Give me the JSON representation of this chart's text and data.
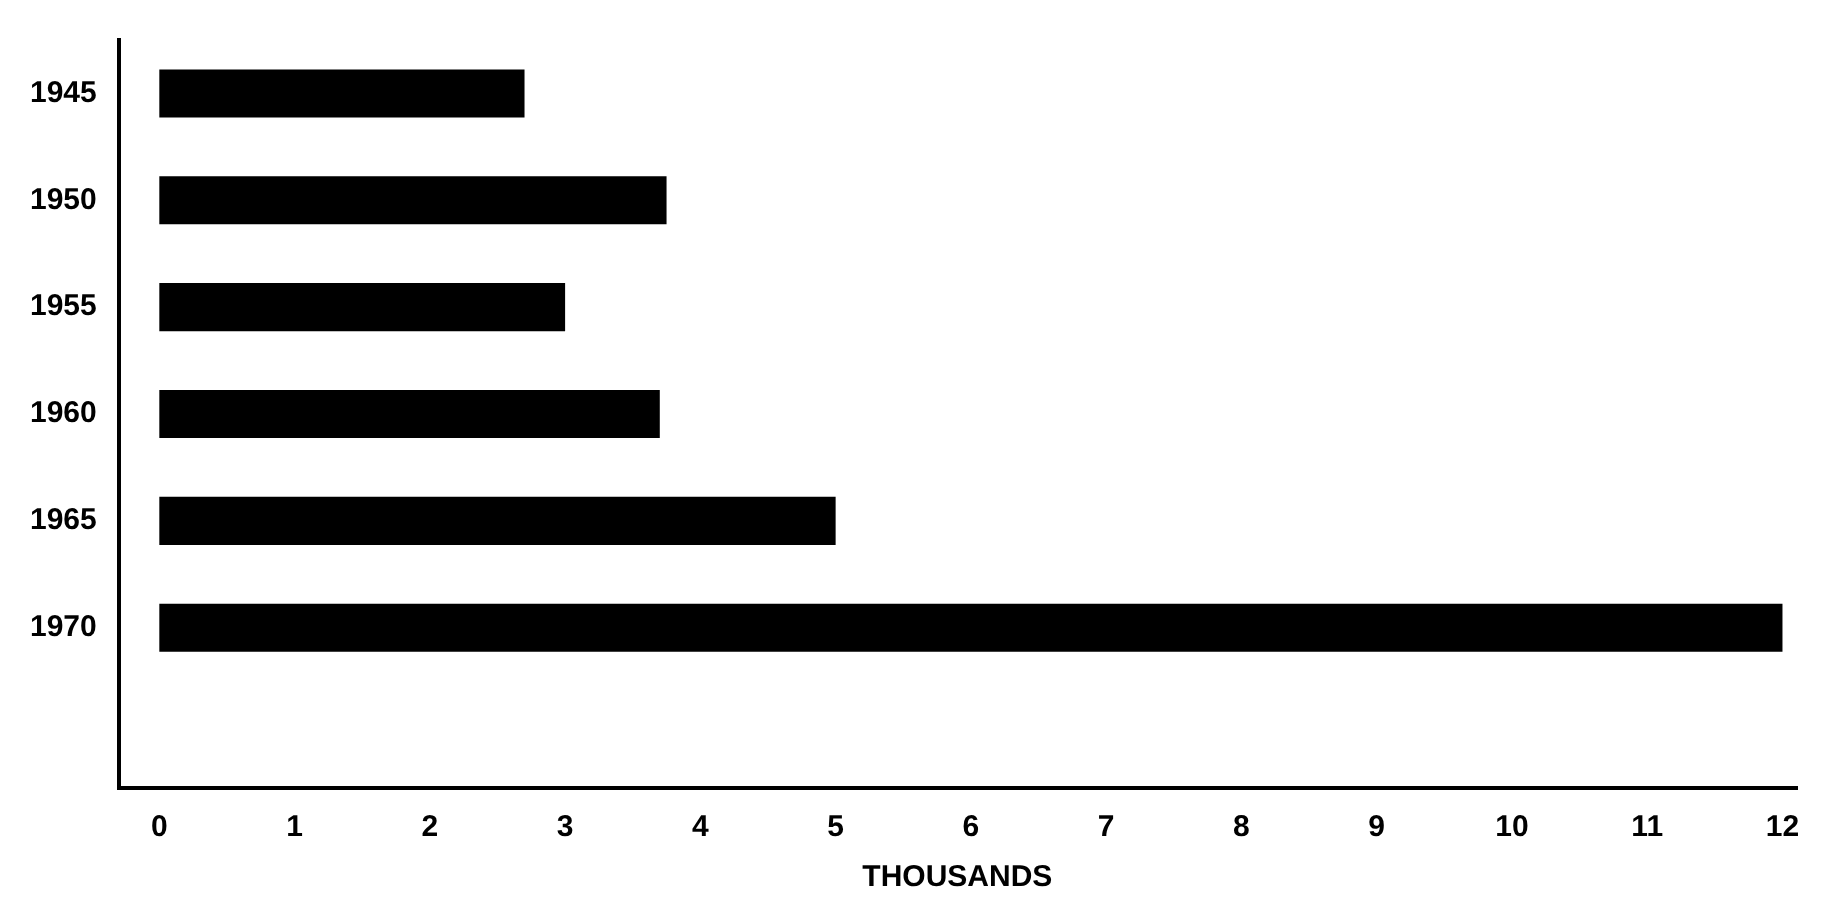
{
  "chart_data": {
    "type": "bar",
    "orientation": "horizontal",
    "xlabel": "THOUSANDS",
    "categories": [
      "1945",
      "1950",
      "1955",
      "1960",
      "1965",
      "1970"
    ],
    "values": [
      2.7,
      3.75,
      3.0,
      3.7,
      5.0,
      12.0
    ],
    "color": "#000000",
    "xlim": [
      -0.3,
      12.1
    ],
    "xticks": [
      0,
      1,
      2,
      3,
      4,
      5,
      6,
      7,
      8,
      9,
      10,
      11,
      12
    ],
    "grid": false,
    "legend": false
  }
}
